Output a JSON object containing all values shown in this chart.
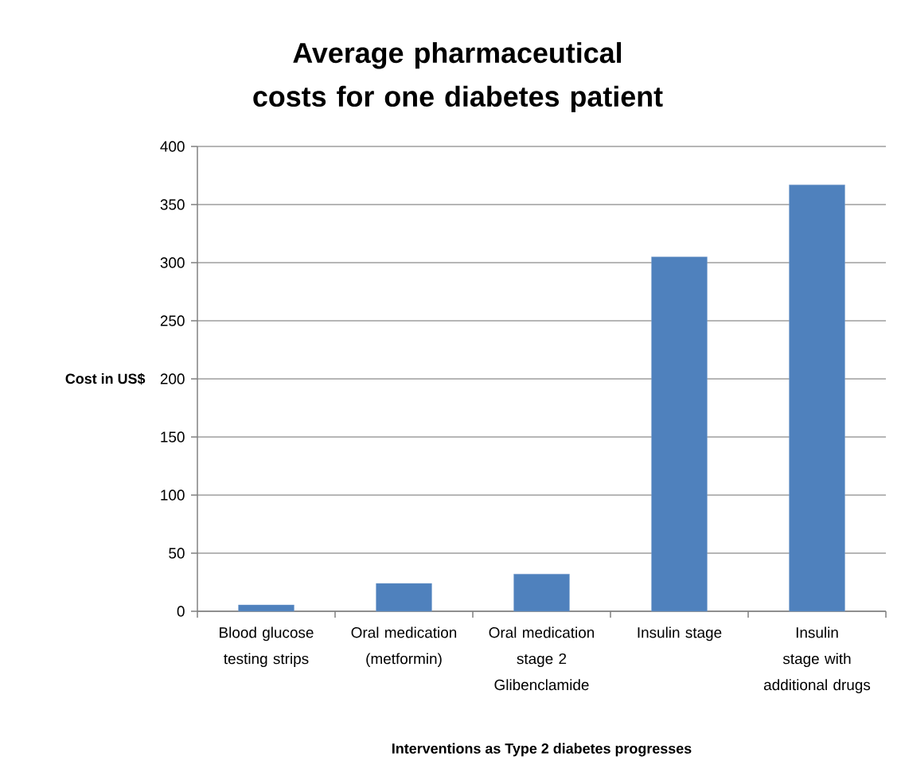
{
  "chart_data": {
    "type": "bar",
    "title": "Average pharmaceutical costs for one diabetes patient",
    "xlabel": "Interventions as Type 2 diabetes progresses",
    "ylabel": "Cost in US$",
    "categories": [
      "Blood glucose testing strips",
      "Oral medication (metformin)",
      "Oral medication stage 2 Glibenclamide",
      "Insulin stage",
      "Insulin stage with additional drugs"
    ],
    "values": [
      5.5,
      24,
      32,
      305,
      367
    ],
    "color": "#4f81bd",
    "ylim": [
      0,
      400
    ],
    "yticks": [
      0,
      50,
      100,
      150,
      200,
      250,
      300,
      350,
      400
    ],
    "grid": "y"
  }
}
